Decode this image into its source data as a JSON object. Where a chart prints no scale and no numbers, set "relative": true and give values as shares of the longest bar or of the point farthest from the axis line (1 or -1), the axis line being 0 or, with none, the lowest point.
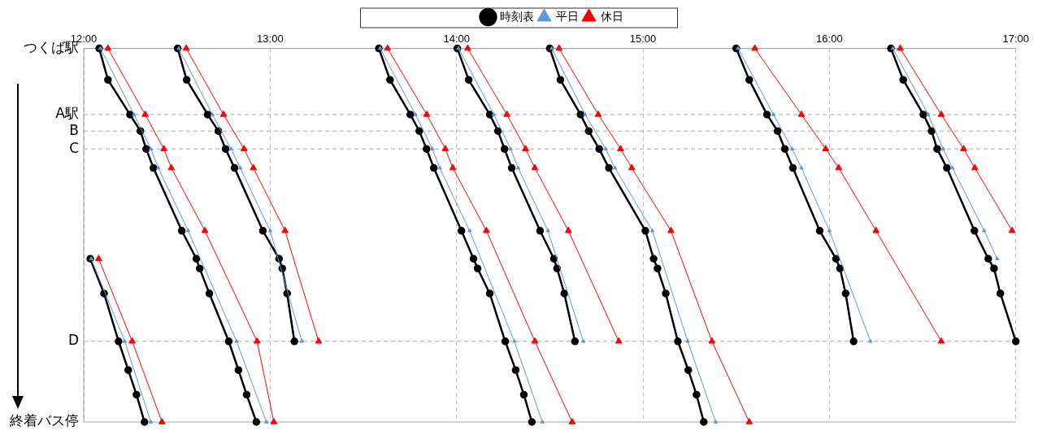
{
  "chart_data": {
    "type": "line",
    "legend": "top",
    "grid": "x",
    "relative": true,
    "xlim": [
      12,
      17
    ],
    "xticks": [
      {
        "value": 12,
        "label": "12:00"
      },
      {
        "value": 13,
        "label": "13:00"
      },
      {
        "value": 14,
        "label": "14:00"
      },
      {
        "value": 15,
        "label": "15:00"
      },
      {
        "value": 16,
        "label": "16:00"
      },
      {
        "value": 17,
        "label": "17:00"
      }
    ],
    "ref_lines": [
      {
        "axis": "y",
        "value": 0,
        "label": "つくば駅"
      },
      {
        "axis": "y",
        "value": -0.177,
        "label": "A駅",
        "line_style": "dashed"
      },
      {
        "axis": "y",
        "value": -0.221,
        "label": "B",
        "line_style": "dashed"
      },
      {
        "axis": "y",
        "value": -0.269,
        "label": "C",
        "line_style": "dashed"
      },
      {
        "axis": "y",
        "value": -0.784,
        "label": "D",
        "line_style": "dashed"
      },
      {
        "axis": "y",
        "value": -1,
        "label": "終着バス停"
      }
    ],
    "series": [
      {
        "name": "時刻表",
        "color": "#000000",
        "marker": "circle",
        "x": [
          12.035,
          12.109,
          12.187,
          12.239,
          12.283,
          12.326,
          null,
          12.083,
          12.13,
          12.248,
          12.304,
          12.335,
          12.374,
          12.526,
          12.604,
          12.622,
          12.674,
          12.778,
          12.83,
          12.874,
          12.926,
          null,
          12.504,
          12.552,
          12.665,
          12.722,
          12.761,
          12.809,
          12.961,
          13.048,
          13.065,
          13.091,
          13.13,
          null,
          13.583,
          13.643,
          13.752,
          13.8,
          13.839,
          13.878,
          14.026,
          14.091,
          14.113,
          14.178,
          14.261,
          14.317,
          14.361,
          14.404,
          null,
          14.004,
          14.065,
          14.178,
          14.222,
          14.257,
          14.296,
          14.448,
          14.522,
          14.539,
          14.578,
          14.635,
          null,
          14.5,
          14.557,
          14.665,
          14.709,
          14.765,
          14.817,
          15.013,
          15.057,
          15.078,
          15.122,
          15.187,
          15.243,
          15.287,
          15.326,
          null,
          15.5,
          15.57,
          15.665,
          15.722,
          15.761,
          15.804,
          15.948,
          16.035,
          16.057,
          16.087,
          16.13,
          null,
          16.33,
          16.396,
          16.504,
          16.548,
          16.578,
          16.63,
          16.778,
          16.852,
          16.883,
          16.917,
          17.0
        ],
        "values": [
          -0.563,
          -0.656,
          -0.784,
          -0.861,
          -0.927,
          -1,
          null,
          0,
          -0.084,
          -0.177,
          -0.221,
          -0.269,
          -0.32,
          -0.488,
          -0.563,
          -0.589,
          -0.656,
          -0.784,
          -0.861,
          -0.927,
          -1,
          null,
          0,
          -0.084,
          -0.177,
          -0.221,
          -0.269,
          -0.32,
          -0.488,
          -0.563,
          -0.589,
          -0.656,
          -0.784,
          null,
          0,
          -0.084,
          -0.177,
          -0.221,
          -0.269,
          -0.32,
          -0.488,
          -0.563,
          -0.589,
          -0.656,
          -0.784,
          -0.861,
          -0.927,
          -1,
          null,
          0,
          -0.084,
          -0.177,
          -0.221,
          -0.269,
          -0.32,
          -0.488,
          -0.563,
          -0.589,
          -0.656,
          -0.784,
          null,
          0,
          -0.084,
          -0.177,
          -0.221,
          -0.269,
          -0.32,
          -0.488,
          -0.563,
          -0.589,
          -0.656,
          -0.784,
          -0.861,
          -0.927,
          -1,
          null,
          0,
          -0.084,
          -0.177,
          -0.221,
          -0.269,
          -0.32,
          -0.488,
          -0.563,
          -0.589,
          -0.656,
          -0.784,
          null,
          0,
          -0.084,
          -0.177,
          -0.221,
          -0.269,
          -0.32,
          -0.488,
          -0.563,
          -0.589,
          -0.656,
          -0.784
        ]
      },
      {
        "name": "平日",
        "color": "#5b9bd5",
        "marker": "triangle",
        "x": [
          12.04,
          12.22,
          12.36,
          null,
          12.09,
          12.27,
          12.36,
          12.4,
          12.56,
          12.82,
          12.98,
          null,
          12.51,
          12.69,
          12.79,
          12.84,
          13.0,
          13.17,
          null,
          13.59,
          13.78,
          13.87,
          13.91,
          14.07,
          14.31,
          14.46,
          null,
          14.01,
          14.2,
          14.29,
          14.33,
          14.49,
          14.68,
          null,
          14.51,
          14.69,
          14.8,
          14.85,
          15.05,
          15.24,
          15.39,
          null,
          15.51,
          15.7,
          15.8,
          15.85,
          16.0,
          16.22,
          null,
          16.34,
          16.53,
          16.61,
          16.66,
          16.83,
          16.9
        ],
        "values": [
          -0.563,
          -0.784,
          -1,
          null,
          0,
          -0.177,
          -0.269,
          -0.32,
          -0.488,
          -0.784,
          -1,
          null,
          0,
          -0.177,
          -0.269,
          -0.32,
          -0.488,
          -0.784,
          null,
          0,
          -0.177,
          -0.269,
          -0.32,
          -0.488,
          -0.784,
          -1,
          null,
          0,
          -0.177,
          -0.269,
          -0.32,
          -0.488,
          -0.784,
          null,
          0,
          -0.177,
          -0.269,
          -0.32,
          -0.488,
          -0.784,
          -1,
          null,
          0,
          -0.177,
          -0.269,
          -0.32,
          -0.488,
          -0.784,
          null,
          0,
          -0.177,
          -0.269,
          -0.32,
          -0.488,
          -0.563
        ]
      },
      {
        "name": "休日",
        "color": "#ff0000",
        "marker": "triangle",
        "x": [
          12.08,
          12.26,
          12.42,
          null,
          12.13,
          12.33,
          12.43,
          12.47,
          12.65,
          12.93,
          13.02,
          null,
          12.55,
          12.75,
          12.86,
          12.91,
          13.08,
          13.26,
          null,
          13.63,
          13.84,
          13.94,
          13.98,
          14.16,
          14.42,
          14.62,
          null,
          14.06,
          14.27,
          14.37,
          14.42,
          14.6,
          14.87,
          null,
          14.55,
          14.76,
          14.88,
          14.94,
          15.15,
          15.37,
          15.57,
          null,
          15.6,
          15.85,
          15.98,
          16.05,
          16.25,
          16.6,
          null,
          16.38,
          16.6,
          16.72,
          16.78,
          16.98
        ],
        "values": [
          -0.563,
          -0.784,
          -1,
          null,
          0,
          -0.177,
          -0.269,
          -0.32,
          -0.488,
          -0.784,
          -1,
          null,
          0,
          -0.177,
          -0.269,
          -0.32,
          -0.488,
          -0.784,
          null,
          0,
          -0.177,
          -0.269,
          -0.32,
          -0.488,
          -0.784,
          -1,
          null,
          0,
          -0.177,
          -0.269,
          -0.32,
          -0.488,
          -0.784,
          null,
          0,
          -0.177,
          -0.269,
          -0.32,
          -0.488,
          -0.784,
          -1,
          null,
          0,
          -0.177,
          -0.269,
          -0.32,
          -0.488,
          -0.784,
          null,
          0,
          -0.177,
          -0.269,
          -0.32,
          -0.488
        ]
      }
    ]
  }
}
